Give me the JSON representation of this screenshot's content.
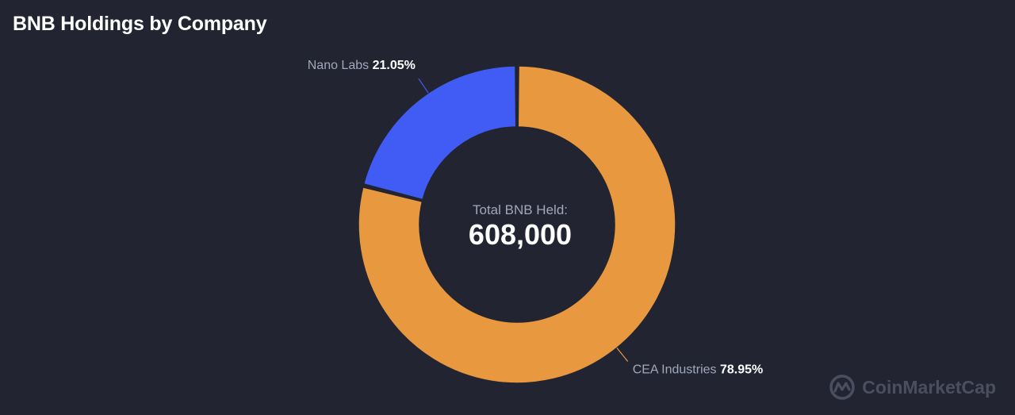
{
  "title": "BNB Holdings by Company",
  "watermark": "CoinMarketCap",
  "chart_data": {
    "type": "pie",
    "title": "BNB Holdings by Company",
    "center_label": "Total BNB Held:",
    "center_value": "608,000",
    "slices": [
      {
        "name": "CEA Industries",
        "percent_label": "78.95%",
        "value": 78.95,
        "color": "#e8983e"
      },
      {
        "name": "Nano Labs",
        "percent_label": "21.05%",
        "value": 21.05,
        "color": "#405cf4"
      }
    ]
  },
  "colors": {
    "background": "#222531",
    "label_text": "#a1a7bb",
    "value_text": "#ffffff"
  }
}
